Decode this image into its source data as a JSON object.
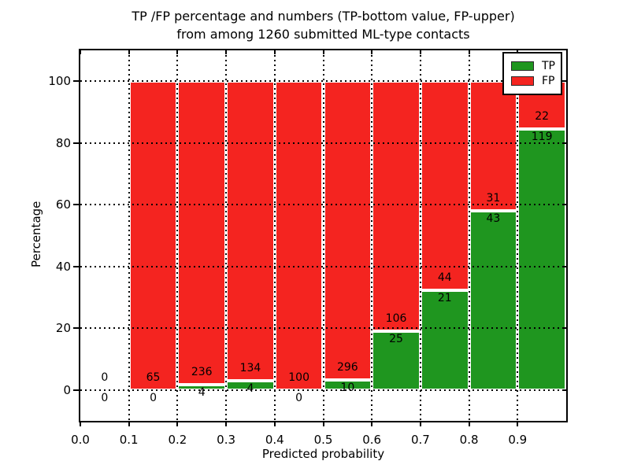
{
  "title": {
    "line1": "TP /FP percentage and numbers (TP-bottom value, FP-upper)",
    "line2": "from among 1260 submitted ML-type contacts"
  },
  "axes": {
    "xlabel": "Predicted probability",
    "ylabel": "Percentage",
    "x_tick_labels": [
      "0.0",
      "0.1",
      "0.2",
      "0.3",
      "0.4",
      "0.5",
      "0.6",
      "0.7",
      "0.8",
      "0.9"
    ],
    "y_tick_labels": [
      "0",
      "20",
      "40",
      "60",
      "80",
      "100"
    ]
  },
  "legend": {
    "items": [
      {
        "label": "TP",
        "color": "#1f961f"
      },
      {
        "label": "FP",
        "color": "#f42420"
      }
    ]
  },
  "colors": {
    "tp_green": "#1f961f",
    "fp_red": "#f42420",
    "bar_edge": "#ffffff",
    "grid": "#000000",
    "background": "#ffffff"
  },
  "chart_data": {
    "type": "bar",
    "stacked": true,
    "normalized": "each bin scaled to 100% of bin total; labels show raw counts",
    "title": "TP /FP percentage and numbers (TP-bottom value, FP-upper)\nfrom among 1260 submitted ML-type contacts",
    "xlabel": "Predicted probability",
    "ylabel": "Percentage",
    "xlim": [
      0.0,
      1.0
    ],
    "ylim": [
      -10,
      110
    ],
    "x_ticks": [
      0.0,
      0.1,
      0.2,
      0.3,
      0.4,
      0.5,
      0.6,
      0.7,
      0.8,
      0.9
    ],
    "y_ticks": [
      0,
      20,
      40,
      60,
      80,
      100
    ],
    "grid": "dotted black horizontal and vertical",
    "legend_position": "upper right",
    "bin_edges": [
      0.0,
      0.1,
      0.2,
      0.3,
      0.4,
      0.5,
      0.6,
      0.7,
      0.8,
      0.9,
      1.0
    ],
    "series": [
      {
        "name": "TP",
        "color": "#1f961f",
        "counts": [
          0,
          0,
          4,
          4,
          0,
          10,
          25,
          21,
          43,
          119
        ]
      },
      {
        "name": "FP",
        "color": "#f42420",
        "counts": [
          0,
          65,
          236,
          134,
          100,
          296,
          106,
          44,
          31,
          22
        ]
      }
    ],
    "tp_percent_per_bin": [
      0,
      0,
      1.67,
      2.9,
      0,
      3.27,
      19.08,
      32.31,
      58.11,
      84.4
    ],
    "total_contacts": 1260
  }
}
